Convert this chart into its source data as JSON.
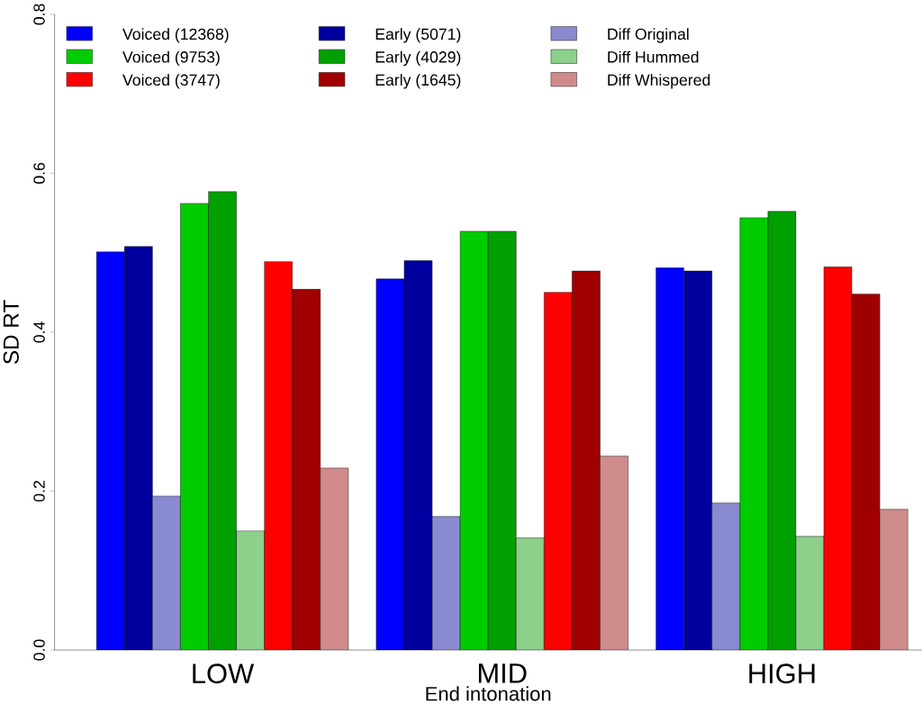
{
  "chart_data": {
    "type": "bar",
    "xlabel": "End intonation",
    "ylabel": "SD RT",
    "categories": [
      "LOW",
      "MID",
      "HIGH"
    ],
    "series": [
      {
        "name": "Voiced (12368)",
        "color": "#0000ff",
        "values": [
          0.501,
          0.467,
          0.481
        ]
      },
      {
        "name": "Early (5071)",
        "color": "#00009f",
        "values": [
          0.508,
          0.49,
          0.477
        ]
      },
      {
        "name": "Diff Original",
        "color": "#8a8ad0",
        "values": [
          0.194,
          0.168,
          0.185
        ]
      },
      {
        "name": "Voiced (9753)",
        "color": "#00cc00",
        "values": [
          0.562,
          0.527,
          0.544
        ]
      },
      {
        "name": "Early (4029)",
        "color": "#00a000",
        "values": [
          0.577,
          0.527,
          0.552
        ]
      },
      {
        "name": "Diff Hummed",
        "color": "#8cd08c",
        "values": [
          0.15,
          0.141,
          0.143
        ]
      },
      {
        "name": "Voiced (3747)",
        "color": "#ff0000",
        "values": [
          0.489,
          0.45,
          0.482
        ]
      },
      {
        "name": "Early (1645)",
        "color": "#a00000",
        "values": [
          0.454,
          0.477,
          0.448
        ]
      },
      {
        "name": "Diff Whispered",
        "color": "#d08c8c",
        "values": [
          0.229,
          0.244,
          0.177
        ]
      }
    ],
    "ylim": [
      0,
      0.8
    ],
    "yticks": [
      {
        "value": 0,
        "label": "0.0"
      },
      0.2,
      0.4,
      0.6,
      0.8
    ],
    "grid": false,
    "legend": "top"
  }
}
